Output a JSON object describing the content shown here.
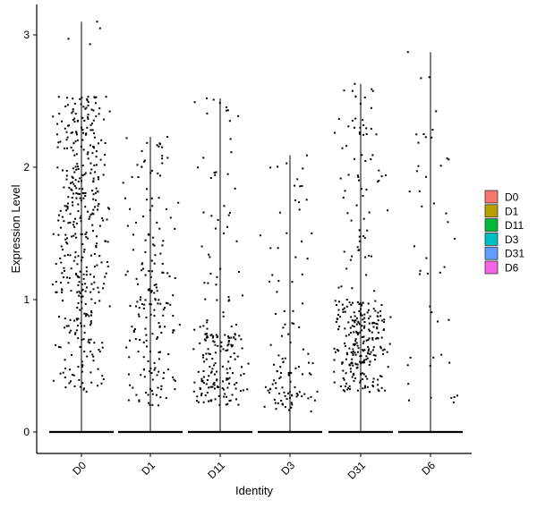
{
  "chart_data": {
    "type": "scatter",
    "subtype": "violin-jitter",
    "xlabel": "Identity",
    "ylabel": "Expression Level",
    "categories": [
      "D0",
      "D1",
      "D11",
      "D3",
      "D31",
      "D6"
    ],
    "ylim": [
      -0.18,
      3.25
    ],
    "yticks": [
      0,
      1,
      2,
      3
    ],
    "legend": {
      "placement": "right",
      "entries": [
        {
          "label": "D0",
          "color": "#F8766D"
        },
        {
          "label": "D1",
          "color": "#B79F00"
        },
        {
          "label": "D11",
          "color": "#00BA38"
        },
        {
          "label": "D3",
          "color": "#00BFC4"
        },
        {
          "label": "D31",
          "color": "#619CFF"
        },
        {
          "label": "D6",
          "color": "#F564E3"
        }
      ]
    },
    "series": [
      {
        "category": "D0",
        "max": 3.1,
        "nonzero_points_approx": 420,
        "distribution": "spread 0.3-2.6, dense 1.2-2.5"
      },
      {
        "category": "D1",
        "max": 2.23,
        "nonzero_points_approx": 190,
        "distribution": "spread 0.2-2.2"
      },
      {
        "category": "D11",
        "max": 2.52,
        "nonzero_points_approx": 200,
        "distribution": "dense 0.2-0.7, sparse above"
      },
      {
        "category": "D3",
        "max": 2.09,
        "nonzero_points_approx": 110,
        "distribution": "dense 0.15-0.6, sparse above"
      },
      {
        "category": "D31",
        "max": 2.63,
        "nonzero_points_approx": 320,
        "distribution": "dense 0.3-1.0, sparse above"
      },
      {
        "category": "D6",
        "max": 2.87,
        "nonzero_points_approx": 45,
        "distribution": "sparse 0.2-2.9"
      }
    ]
  }
}
